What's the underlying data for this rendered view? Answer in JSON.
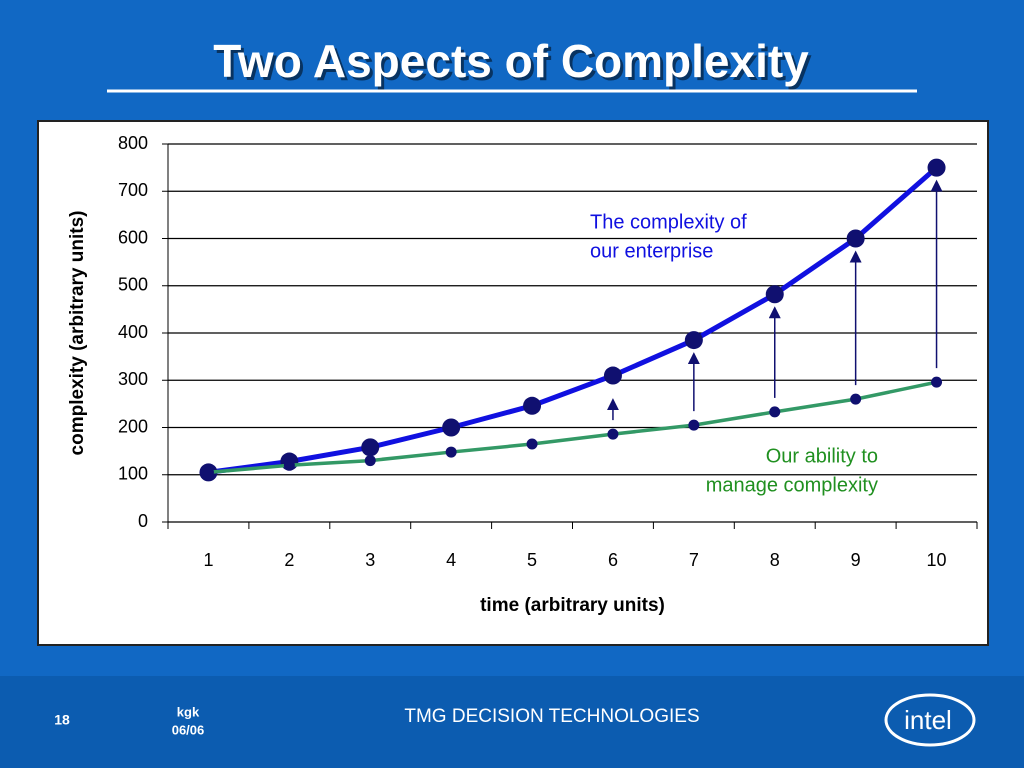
{
  "slide": {
    "title": "Two Aspects of Complexity",
    "page_number": "18",
    "author": "kgk",
    "date": "06/06",
    "footer": "TMG DECISION TECHNOLOGIES",
    "logo": "intel"
  },
  "chart_data": {
    "type": "line",
    "x_label": "time (arbitrary units)",
    "y_label": "complexity (arbitrary units)",
    "categories": [
      "1",
      "2",
      "3",
      "4",
      "5",
      "6",
      "7",
      "8",
      "9",
      "10"
    ],
    "series": [
      {
        "name": "The complexity of our enterprise",
        "color": "#1010e0",
        "marker_color": "#101070",
        "values": [
          105,
          128,
          158,
          200,
          246,
          310,
          385,
          482,
          600,
          750
        ]
      },
      {
        "name": "Our ability to manage complexity",
        "color": "#339966",
        "marker_color": "#101070",
        "values": [
          105,
          120,
          130,
          148,
          165,
          186,
          205,
          233,
          260,
          296
        ]
      }
    ],
    "annotations": [
      {
        "lines": [
          "The complexity of",
          "our enterprise"
        ],
        "color": "#1010e0"
      },
      {
        "lines": [
          "Our ability to",
          "manage complexity"
        ],
        "color": "#209020"
      }
    ],
    "ylim": [
      0,
      800
    ],
    "yticks": [
      0,
      100,
      200,
      300,
      400,
      500,
      600,
      700,
      800
    ],
    "grid": true
  }
}
